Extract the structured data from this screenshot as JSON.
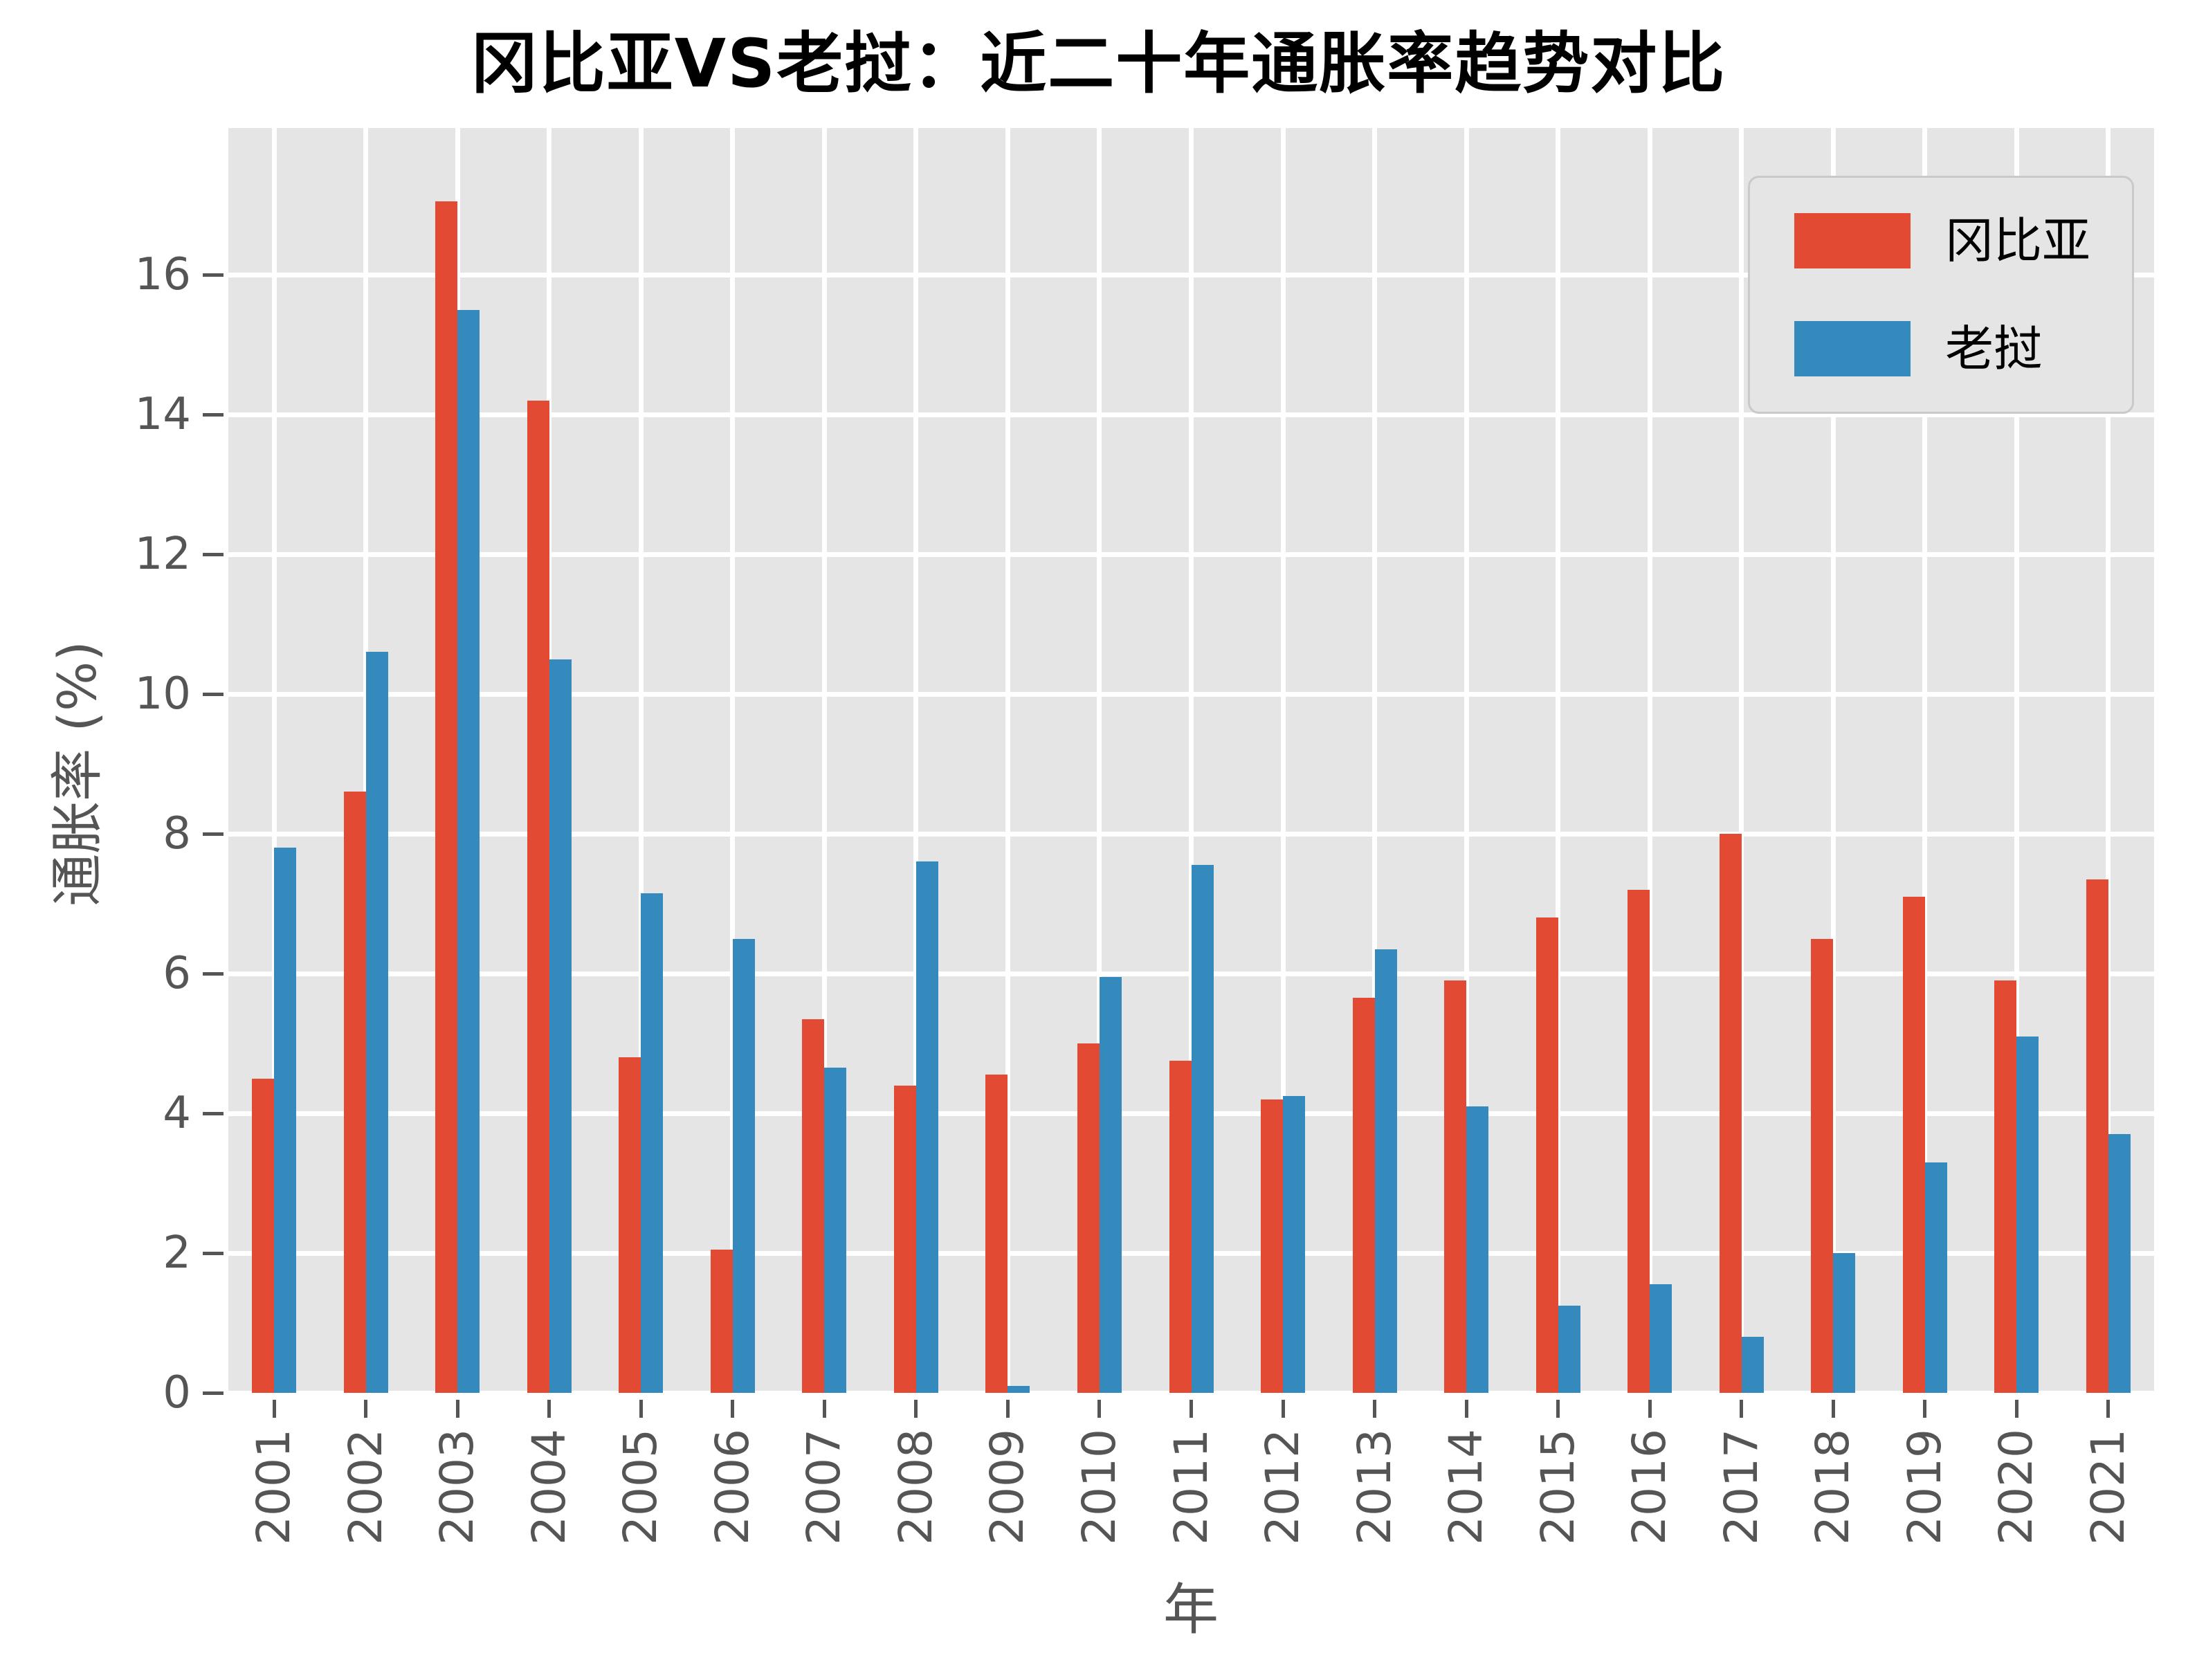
{
  "title": "冈比亚VS老挝：近二十年通胀率趋势对比",
  "chart_data": {
    "type": "bar",
    "title": "冈比亚VS老挝：近二十年通胀率趋势对比",
    "xlabel": "年",
    "ylabel": "通胀率 (%)",
    "categories": [
      "2001",
      "2002",
      "2003",
      "2004",
      "2005",
      "2006",
      "2007",
      "2008",
      "2009",
      "2010",
      "2011",
      "2012",
      "2013",
      "2014",
      "2015",
      "2016",
      "2017",
      "2018",
      "2019",
      "2020",
      "2021"
    ],
    "series": [
      {
        "name": "冈比亚",
        "color": "#E24A33",
        "values": [
          4.5,
          8.6,
          17.05,
          14.2,
          4.8,
          2.05,
          5.35,
          4.4,
          4.55,
          5.0,
          4.75,
          4.2,
          5.65,
          5.9,
          6.8,
          7.2,
          8.0,
          6.5,
          7.1,
          5.9,
          7.35
        ]
      },
      {
        "name": "老挝",
        "color": "#348ABD",
        "values": [
          7.8,
          10.6,
          15.5,
          10.5,
          7.15,
          6.5,
          4.65,
          7.6,
          0.1,
          5.95,
          7.55,
          4.25,
          6.35,
          4.1,
          1.25,
          1.55,
          0.8,
          2.0,
          3.3,
          5.1,
          3.7
        ]
      }
    ],
    "ylim": [
      0,
      18.1
    ],
    "yticks": [
      0,
      2,
      4,
      6,
      8,
      10,
      12,
      14,
      16
    ],
    "grid": true,
    "legend_position": "upper right",
    "colors": {
      "plot_background": "#E5E5E5",
      "grid": "#FFFFFF",
      "tick_text": "#555555",
      "title_text": "#000000",
      "legend_border": "#C9C9C9"
    }
  }
}
